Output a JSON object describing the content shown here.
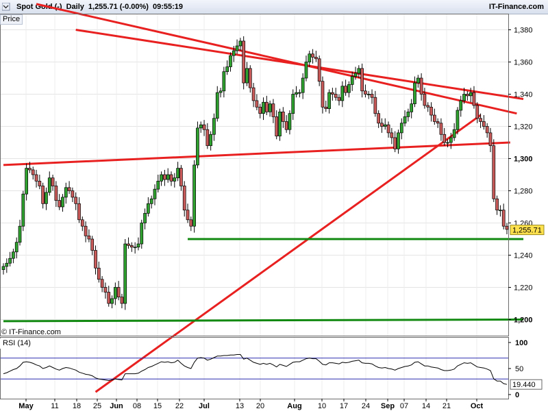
{
  "header": {
    "instrument": "Spot Gold (-)",
    "interval": "Daily",
    "last": "1,255.71 (-0.00%)",
    "time": "09:55:19",
    "brand": "IT-Finance.com"
  },
  "price_pane": {
    "label": "Price",
    "copyright": "© IT-Finance.com",
    "last_tag": "1,255.71"
  },
  "rsi_pane": {
    "label": "RSI (14)",
    "last_tag": "19.440"
  },
  "colors": {
    "up": "#2fa12f",
    "down": "#c85a5a",
    "trend": "#e82020",
    "support": "#128a12",
    "rsi": "#000000",
    "band": "#2b2bb0"
  },
  "chart_data": [
    {
      "type": "candlestick",
      "title": "Spot Gold (-)",
      "ylim": [
        1190,
        1390
      ],
      "y_ticks": [
        1200,
        1220,
        1240,
        1260,
        1280,
        1300,
        1320,
        1340,
        1360,
        1380
      ],
      "y_tick_labels": [
        "1,200",
        "1,220",
        "1,240",
        "1,260",
        "1,280",
        "1,300",
        "1,320",
        "1,340",
        "1,360",
        "1,380"
      ],
      "bold_ticks": [
        1200,
        1300
      ],
      "x_tick_labels": [
        "May",
        "11",
        "18",
        "25",
        "Jun",
        "08",
        "15",
        "22",
        "Jul",
        "13",
        "20",
        "Aug",
        "10",
        "17",
        "24",
        "Sep",
        "07",
        "14",
        "21",
        "Oct"
      ],
      "bold_x_labels": [
        "May",
        "Jun",
        "Jul",
        "Aug",
        "Sep",
        "Oct"
      ],
      "closes": [
        1233,
        1235,
        1238,
        1242,
        1248,
        1258,
        1278,
        1294,
        1293,
        1290,
        1286,
        1283,
        1272,
        1279,
        1288,
        1283,
        1274,
        1270,
        1276,
        1282,
        1280,
        1276,
        1272,
        1262,
        1258,
        1252,
        1250,
        1243,
        1232,
        1225,
        1220,
        1217,
        1210,
        1213,
        1220,
        1214,
        1210,
        1247,
        1246,
        1245,
        1245,
        1247,
        1260,
        1266,
        1272,
        1275,
        1281,
        1286,
        1290,
        1287,
        1290,
        1286,
        1288,
        1294,
        1283,
        1268,
        1262,
        1258,
        1296,
        1319,
        1321,
        1318,
        1308,
        1315,
        1325,
        1341,
        1342,
        1354,
        1357,
        1364,
        1367,
        1370,
        1373,
        1347,
        1356,
        1344,
        1336,
        1332,
        1328,
        1335,
        1329,
        1334,
        1326,
        1314,
        1329,
        1323,
        1318,
        1328,
        1340,
        1341,
        1341,
        1350,
        1360,
        1365,
        1363,
        1362,
        1348,
        1332,
        1331,
        1341,
        1340,
        1338,
        1336,
        1345,
        1341,
        1346,
        1351,
        1353,
        1356,
        1342,
        1340,
        1340,
        1338,
        1328,
        1322,
        1320,
        1321,
        1316,
        1313,
        1306,
        1316,
        1322,
        1326,
        1329,
        1334,
        1347,
        1350,
        1340,
        1333,
        1332,
        1327,
        1323,
        1322,
        1315,
        1310,
        1310,
        1313,
        1318,
        1330,
        1336,
        1340,
        1339,
        1341,
        1333,
        1325,
        1323,
        1320,
        1316,
        1308,
        1275,
        1268,
        1268,
        1258,
        1256
      ],
      "price_scale_last": 1255.71,
      "trendlines": [
        {
          "name": "",
          "color": "trend",
          "points": [
            [
              0,
              1296
            ],
            [
              154,
              1310
            ]
          ]
        },
        {
          "name": "",
          "color": "trend",
          "points": [
            [
              10,
              1396
            ],
            [
              156,
              1328
            ]
          ]
        },
        {
          "name": "",
          "color": "trend",
          "points": [
            [
              28,
              1155
            ],
            [
              145,
              1327
            ]
          ]
        },
        {
          "name": "",
          "color": "trend",
          "points": [
            [
              22,
              1380
            ],
            [
              158,
              1337
            ]
          ]
        },
        {
          "name": "",
          "color": "support",
          "points": [
            [
              56,
              1250
            ],
            [
              158,
              1250
            ]
          ]
        },
        {
          "name": "",
          "color": "support",
          "points": [
            [
              0,
              1199
            ],
            [
              158,
              1200
            ]
          ]
        }
      ]
    },
    {
      "type": "line",
      "title": "RSI (14)",
      "ylim": [
        0,
        100
      ],
      "y_ticks": [
        0,
        50,
        100
      ],
      "y_tick_labels": [
        "0",
        "50",
        "100"
      ],
      "bands": [
        30,
        70
      ],
      "values": [
        40,
        42,
        45,
        48,
        50,
        55,
        62,
        63,
        62,
        60,
        57,
        55,
        50,
        52,
        55,
        52,
        49,
        47,
        50,
        52,
        51,
        49,
        47,
        43,
        41,
        39,
        38,
        36,
        32,
        30,
        29,
        28,
        27,
        28,
        30,
        29,
        28,
        40,
        40,
        40,
        40,
        41,
        45,
        48,
        52,
        54,
        57,
        60,
        63,
        62,
        63,
        61,
        62,
        66,
        60,
        55,
        52,
        50,
        62,
        70,
        71,
        70,
        66,
        68,
        71,
        74,
        74,
        75,
        75,
        76,
        76,
        77,
        77,
        68,
        70,
        66,
        62,
        60,
        58,
        60,
        58,
        60,
        57,
        53,
        58,
        56,
        54,
        58,
        62,
        63,
        63,
        66,
        69,
        70,
        69,
        69,
        64,
        58,
        57,
        61,
        61,
        60,
        59,
        62,
        61,
        62,
        64,
        65,
        66,
        61,
        60,
        60,
        59,
        55,
        52,
        51,
        52,
        50,
        49,
        47,
        50,
        52,
        54,
        55,
        57,
        62,
        63,
        59,
        55,
        55,
        53,
        52,
        51,
        48,
        46,
        46,
        47,
        49,
        55,
        58,
        61,
        60,
        61,
        57,
        53,
        52,
        51,
        49,
        46,
        30,
        26,
        26,
        21,
        19.44
      ]
    }
  ]
}
